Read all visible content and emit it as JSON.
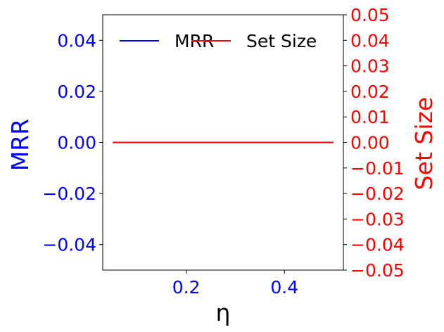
{
  "chart_data": {
    "type": "line",
    "x": [
      0.05,
      0.5
    ],
    "xlabel": "η",
    "x_ticks": [
      "0.2",
      "0.4"
    ],
    "x_tick_values": [
      0.2,
      0.4
    ],
    "xlim": [
      0.03,
      0.52
    ],
    "y_left": {
      "label": "MRR",
      "ylim": [
        -0.05,
        0.05
      ],
      "ticks": [
        "−0.04",
        "−0.02",
        "0.00",
        "0.02",
        "0.04"
      ],
      "tick_values": [
        -0.04,
        -0.02,
        0.0,
        0.02,
        0.04
      ],
      "color": "#0000ff"
    },
    "y_right": {
      "label": "Set Size",
      "ylim": [
        -0.05,
        0.05
      ],
      "ticks": [
        "−0.05",
        "−0.04",
        "−0.03",
        "−0.02",
        "−0.01",
        "0.00",
        "0.01",
        "0.02",
        "0.03",
        "0.04",
        "0.05"
      ],
      "tick_values": [
        -0.05,
        -0.04,
        -0.03,
        -0.02,
        -0.01,
        0.0,
        0.01,
        0.02,
        0.03,
        0.04,
        0.05
      ],
      "color": "#ff0000"
    },
    "series": [
      {
        "name": "MRR",
        "axis": "left",
        "color": "#0000ff",
        "values": [
          0.0,
          0.0
        ]
      },
      {
        "name": "Set Size",
        "axis": "right",
        "color": "#ff0000",
        "values": [
          0.0,
          0.0
        ]
      }
    ],
    "legend": {
      "placement": "top",
      "ncol": 2
    },
    "grid": false
  }
}
